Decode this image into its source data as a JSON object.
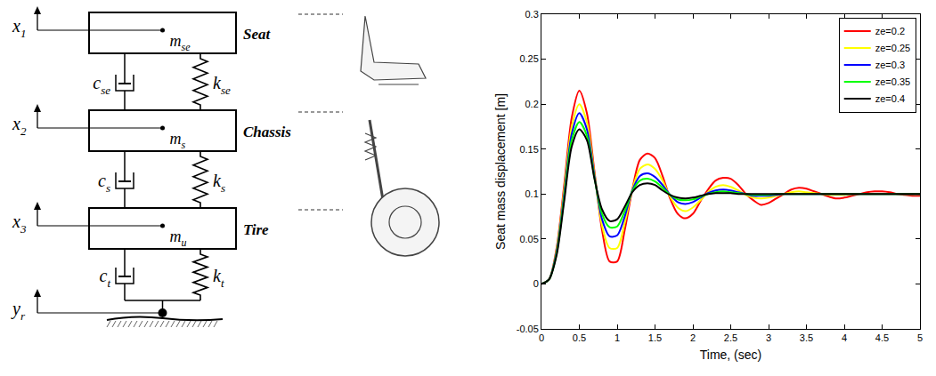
{
  "diagram": {
    "masses": [
      {
        "position": {
          "main": "x",
          "sub": "1"
        },
        "mass": {
          "main": "m",
          "sub": "se"
        },
        "name": "Seat"
      },
      {
        "position": {
          "main": "x",
          "sub": "2"
        },
        "mass": {
          "main": "m",
          "sub": "s"
        },
        "name": "Chassis"
      },
      {
        "position": {
          "main": "x",
          "sub": "3"
        },
        "mass": {
          "main": "m",
          "sub": "u"
        },
        "name": "Tire"
      }
    ],
    "links": [
      {
        "damper": {
          "main": "c",
          "sub": "se"
        },
        "spring": {
          "main": "k",
          "sub": "se"
        }
      },
      {
        "damper": {
          "main": "c",
          "sub": "s"
        },
        "spring": {
          "main": "k",
          "sub": "s"
        }
      },
      {
        "damper": {
          "main": "c",
          "sub": "t"
        },
        "spring": {
          "main": "k",
          "sub": "t"
        }
      }
    ],
    "road": {
      "main": "y",
      "sub": "r"
    }
  },
  "chart_data": {
    "type": "line",
    "x_label": "Time, (sec)",
    "y_label": "Seat mass displacement [m]",
    "x": [
      0,
      0.1,
      0.2,
      0.3,
      0.4,
      0.5,
      0.6,
      0.7,
      0.8,
      0.9,
      1.0,
      1.1,
      1.2,
      1.3,
      1.4,
      1.5,
      1.6,
      1.7,
      1.8,
      1.9,
      2.0,
      2.1,
      2.2,
      2.3,
      2.4,
      2.5,
      2.6,
      2.7,
      2.8,
      2.9,
      3.0,
      3.1,
      3.2,
      3.3,
      3.4,
      3.5,
      3.6,
      3.7,
      3.8,
      3.9,
      4.0,
      4.1,
      4.2,
      4.3,
      4.4,
      4.5,
      4.6,
      4.7,
      4.8,
      4.9,
      5.0
    ],
    "series": [
      {
        "name": "ze=0.2",
        "color": "#ff0000",
        "values": [
          0,
          0.005,
          0.04,
          0.11,
          0.185,
          0.215,
          0.19,
          0.125,
          0.06,
          0.025,
          0.025,
          0.06,
          0.105,
          0.138,
          0.145,
          0.14,
          0.12,
          0.095,
          0.078,
          0.073,
          0.078,
          0.092,
          0.105,
          0.115,
          0.118,
          0.117,
          0.11,
          0.1,
          0.093,
          0.088,
          0.09,
          0.095,
          0.1,
          0.105,
          0.107,
          0.106,
          0.103,
          0.1,
          0.097,
          0.095,
          0.096,
          0.098,
          0.1,
          0.102,
          0.103,
          0.103,
          0.102,
          0.1,
          0.099,
          0.098,
          0.098
        ]
      },
      {
        "name": "ze=0.25",
        "color": "#ffff00",
        "values": [
          0,
          0.005,
          0.038,
          0.105,
          0.175,
          0.2,
          0.18,
          0.122,
          0.065,
          0.04,
          0.04,
          0.068,
          0.105,
          0.128,
          0.133,
          0.128,
          0.115,
          0.097,
          0.085,
          0.081,
          0.085,
          0.093,
          0.102,
          0.108,
          0.11,
          0.108,
          0.104,
          0.099,
          0.096,
          0.095,
          0.096,
          0.098,
          0.1,
          0.102,
          0.103,
          0.102,
          0.101,
          0.1,
          0.099,
          0.099,
          0.099,
          0.1,
          0.1,
          0.1,
          0.1,
          0.1,
          0.1,
          0.1,
          0.1,
          0.1,
          0.1
        ]
      },
      {
        "name": "ze=0.3",
        "color": "#0000ff",
        "values": [
          0,
          0.005,
          0.036,
          0.1,
          0.167,
          0.19,
          0.172,
          0.12,
          0.072,
          0.053,
          0.054,
          0.075,
          0.104,
          0.12,
          0.123,
          0.119,
          0.11,
          0.099,
          0.091,
          0.089,
          0.091,
          0.096,
          0.101,
          0.104,
          0.105,
          0.104,
          0.102,
          0.1,
          0.098,
          0.098,
          0.098,
          0.099,
          0.1,
          0.1,
          0.1,
          0.1,
          0.1,
          0.1,
          0.1,
          0.1,
          0.1,
          0.1,
          0.1,
          0.1,
          0.1,
          0.1,
          0.1,
          0.1,
          0.1,
          0.1,
          0.1
        ]
      },
      {
        "name": "ze=0.35",
        "color": "#00ff00",
        "values": [
          0,
          0.005,
          0.034,
          0.096,
          0.16,
          0.18,
          0.165,
          0.118,
          0.078,
          0.063,
          0.064,
          0.081,
          0.103,
          0.115,
          0.117,
          0.114,
          0.107,
          0.099,
          0.094,
          0.093,
          0.094,
          0.097,
          0.1,
          0.102,
          0.103,
          0.102,
          0.101,
          0.1,
          0.099,
          0.099,
          0.099,
          0.1,
          0.1,
          0.1,
          0.1,
          0.1,
          0.1,
          0.1,
          0.1,
          0.1,
          0.1,
          0.1,
          0.1,
          0.1,
          0.1,
          0.1,
          0.1,
          0.1,
          0.1,
          0.1,
          0.1
        ]
      },
      {
        "name": "ze=0.4",
        "color": "#000000",
        "values": [
          0,
          0.005,
          0.032,
          0.092,
          0.153,
          0.172,
          0.16,
          0.117,
          0.083,
          0.07,
          0.072,
          0.086,
          0.102,
          0.11,
          0.112,
          0.11,
          0.104,
          0.099,
          0.096,
          0.095,
          0.096,
          0.098,
          0.1,
          0.101,
          0.101,
          0.101,
          0.1,
          0.1,
          0.1,
          0.1,
          0.1,
          0.1,
          0.1,
          0.1,
          0.1,
          0.1,
          0.1,
          0.1,
          0.1,
          0.1,
          0.1,
          0.1,
          0.1,
          0.1,
          0.1,
          0.1,
          0.1,
          0.1,
          0.1,
          0.1,
          0.1
        ]
      }
    ],
    "xlim": [
      0,
      5
    ],
    "xticks": [
      0,
      0.5,
      1,
      1.5,
      2,
      2.5,
      3,
      3.5,
      4,
      4.5,
      5
    ],
    "ylim": [
      -0.05,
      0.3
    ],
    "yticks": [
      -0.05,
      0,
      0.05,
      0.1,
      0.15,
      0.2,
      0.25,
      0.3
    ],
    "grid": false,
    "legend": "northeast"
  }
}
